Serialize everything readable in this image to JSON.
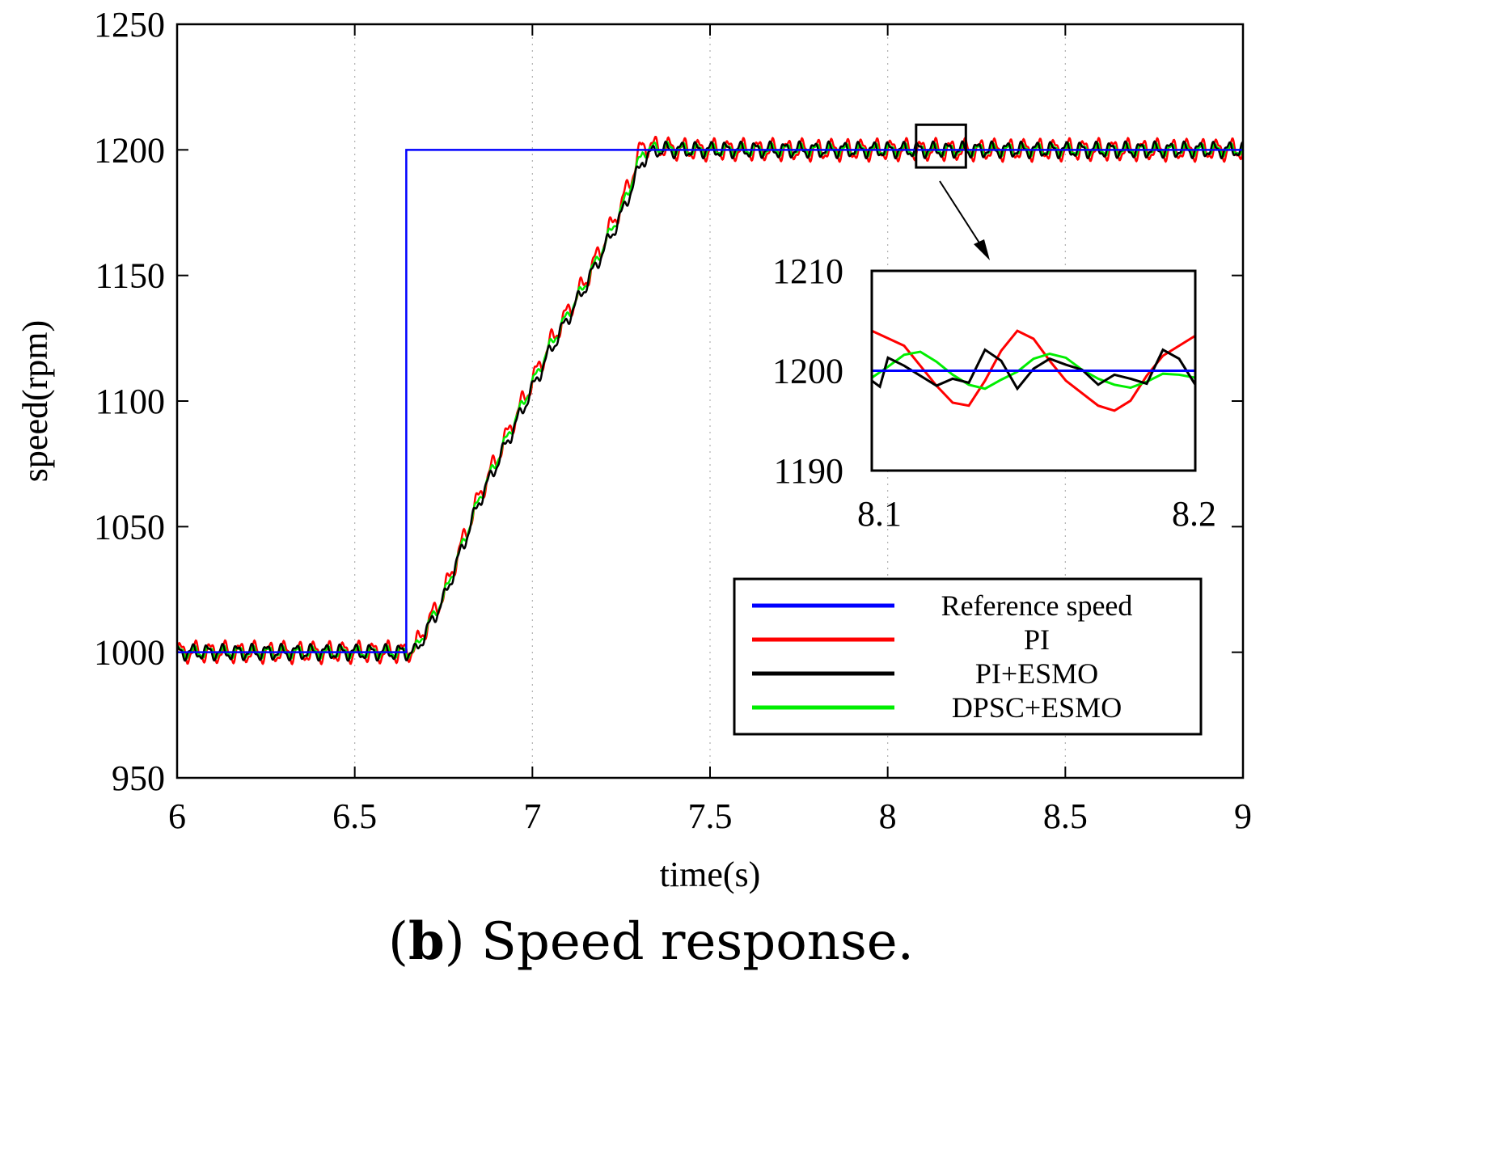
{
  "chart_data": {
    "type": "line",
    "caption": {
      "label": "b",
      "text": " Speed response."
    },
    "xlabel": "time(s)",
    "ylabel": "speed(rpm)",
    "xlim": [
      6,
      9
    ],
    "ylim": [
      950,
      1250
    ],
    "xticks": [
      6,
      6.5,
      7,
      7.5,
      8,
      8.5,
      9
    ],
    "xtick_labels": [
      "6",
      "6.5",
      "7",
      "7.5",
      "8",
      "8.5",
      "9"
    ],
    "yticks": [
      950,
      1000,
      1050,
      1100,
      1150,
      1200,
      1250
    ],
    "ytick_labels": [
      "950",
      "1000",
      "1050",
      "1100",
      "1150",
      "1200",
      "1250"
    ],
    "grid": "dotted vertical",
    "legend_position": "bottom-right",
    "series": [
      {
        "name": "Reference speed",
        "color": "#0000ff",
        "x": [
          6,
          6.645,
          6.645,
          9
        ],
        "y": [
          1000,
          1000,
          1200,
          1200
        ]
      },
      {
        "name": "PI",
        "color": "#ff0000",
        "description_points": {
          "x": [
            6,
            6.65,
            6.67,
            6.75,
            6.85,
            6.95,
            7.05,
            7.15,
            7.25,
            7.31,
            7.35,
            7.45,
            7.6,
            8.0,
            8.5,
            9
          ],
          "y": [
            1000,
            1000,
            1002,
            1023,
            1062,
            1093,
            1123,
            1148,
            1178,
            1202,
            1201,
            1200,
            1200,
            1200,
            1200,
            1200
          ]
        },
        "ripple_amplitude": 3.5
      },
      {
        "name": "PI+ESMO",
        "color": "#000000",
        "description_points": {
          "x": [
            6,
            6.65,
            6.67,
            6.75,
            6.85,
            6.95,
            7.05,
            7.15,
            7.25,
            7.31,
            7.35,
            7.45,
            7.6,
            8.0,
            8.5,
            9
          ],
          "y": [
            1000,
            1000,
            1000,
            1021,
            1060,
            1090,
            1120,
            1146,
            1174,
            1196,
            1200,
            1200,
            1200,
            1200,
            1200,
            1200
          ]
        },
        "ripple_amplitude": 2.5
      },
      {
        "name": "DPSC+ESMO",
        "color": "#00ee00",
        "description_points": {
          "x": [
            6,
            6.65,
            6.67,
            6.75,
            6.85,
            6.95,
            7.05,
            7.15,
            7.25,
            7.31,
            7.35,
            7.45,
            7.6,
            8.0,
            8.5,
            9
          ],
          "y": [
            1000,
            1000,
            1001,
            1022,
            1061,
            1092,
            1122,
            1147,
            1176,
            1199,
            1201,
            1200,
            1200,
            1200,
            1200,
            1200
          ]
        },
        "ripple_amplitude": 2
      }
    ],
    "zoom_region": {
      "x": [
        8.08,
        8.22
      ],
      "y": [
        1193,
        1210
      ]
    },
    "inset": {
      "xlim": [
        8.1,
        8.2
      ],
      "ylim": [
        1190,
        1210
      ],
      "xtick_labels": [
        "8.1",
        "8.2"
      ],
      "ytick_labels": [
        "1190",
        "1200",
        "1210"
      ],
      "series": [
        {
          "name": "Reference speed",
          "x": [
            8.1,
            8.2
          ],
          "y": [
            1200,
            1200
          ]
        },
        {
          "name": "PI",
          "x": [
            8.1,
            8.11,
            8.12,
            8.125,
            8.13,
            8.135,
            8.14,
            8.145,
            8.15,
            8.155,
            8.16,
            8.17,
            8.175,
            8.18,
            8.185,
            8.19,
            8.2
          ],
          "y": [
            1204,
            1202.5,
            1198.5,
            1196.8,
            1196.5,
            1199,
            1202,
            1204,
            1203.2,
            1201,
            1199,
            1196.5,
            1196,
            1197,
            1199.5,
            1201.5,
            1203.5
          ]
        },
        {
          "name": "PI+ESMO",
          "x": [
            8.1,
            8.1025,
            8.105,
            8.11,
            8.115,
            8.12,
            8.125,
            8.13,
            8.135,
            8.14,
            8.145,
            8.15,
            8.155,
            8.16,
            8.165,
            8.17,
            8.175,
            8.18,
            8.185,
            8.19,
            8.195,
            8.2
          ],
          "y": [
            1199,
            1198.4,
            1201.3,
            1200.5,
            1199.5,
            1198.5,
            1199.2,
            1198.8,
            1202.1,
            1201,
            1198.2,
            1200.2,
            1201.2,
            1200.6,
            1200.1,
            1198.6,
            1199.6,
            1199.2,
            1198.7,
            1202.1,
            1201.2,
            1198.6
          ]
        },
        {
          "name": "DPSC+ESMO",
          "x": [
            8.1,
            8.105,
            8.11,
            8.115,
            8.12,
            8.125,
            8.13,
            8.135,
            8.14,
            8.145,
            8.15,
            8.155,
            8.16,
            8.165,
            8.17,
            8.175,
            8.18,
            8.185,
            8.19,
            8.195,
            8.2
          ],
          "y": [
            1199.3,
            1200.4,
            1201.6,
            1201.9,
            1200.9,
            1199.6,
            1198.6,
            1198.2,
            1199.1,
            1199.9,
            1201.2,
            1201.7,
            1201.3,
            1200.1,
            1199.2,
            1198.6,
            1198.3,
            1198.9,
            1199.7,
            1199.6,
            1199.3
          ]
        }
      ]
    }
  }
}
